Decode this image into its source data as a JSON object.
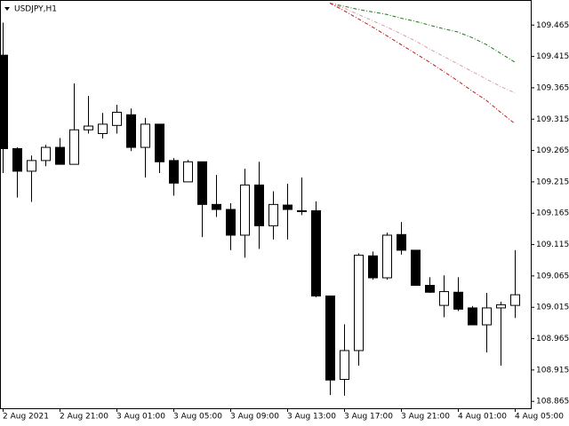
{
  "chart_data": {
    "type": "candlestick",
    "title": "USDJPY,H1",
    "categories": [
      "2 Aug 2021",
      null,
      null,
      null,
      "2 Aug 21:00",
      null,
      null,
      null,
      "3 Aug 01:00",
      null,
      null,
      null,
      "3 Aug 05:00",
      null,
      null,
      null,
      "3 Aug 09:00",
      null,
      null,
      null,
      "3 Aug 13:00",
      null,
      null,
      null,
      "3 Aug 17:00",
      null,
      null,
      null,
      "3 Aug 21:00",
      null,
      null,
      null,
      "4 Aug 01:00",
      null,
      null,
      null,
      "4 Aug 05:00"
    ],
    "open": [
      109.417,
      109.268,
      109.232,
      109.249,
      109.27,
      109.243,
      109.298,
      109.292,
      109.305,
      109.322,
      109.27,
      109.307,
      109.249,
      109.215,
      109.247,
      109.179,
      109.171,
      109.13,
      109.21,
      109.145,
      109.178,
      109.169,
      109.169,
      109.033,
      108.9,
      108.946,
      109.097,
      109.062,
      109.131,
      109.106,
      109.05,
      109.018,
      109.039,
      109.014,
      108.987,
      109.014,
      109.018
    ],
    "high": [
      109.469,
      109.27,
      109.257,
      109.274,
      109.285,
      109.372,
      109.352,
      109.325,
      109.338,
      109.332,
      109.317,
      109.307,
      109.253,
      109.25,
      109.247,
      109.226,
      109.181,
      109.236,
      109.247,
      109.2,
      109.212,
      109.222,
      109.184,
      109.033,
      108.988,
      109.101,
      109.104,
      109.134,
      109.151,
      109.106,
      109.063,
      109.066,
      109.063,
      109.017,
      109.038,
      109.024,
      109.106
    ],
    "low": [
      109.229,
      109.19,
      109.183,
      109.24,
      109.243,
      109.243,
      109.292,
      109.284,
      109.292,
      109.264,
      109.222,
      109.229,
      109.193,
      109.215,
      109.127,
      109.159,
      109.106,
      109.094,
      109.108,
      109.123,
      109.123,
      109.162,
      109.031,
      108.875,
      108.874,
      108.922,
      109.059,
      109.059,
      109.099,
      109.05,
      109.038,
      108.999,
      109.009,
      108.987,
      108.943,
      108.922,
      108.998
    ],
    "close": [
      109.268,
      109.232,
      109.249,
      109.27,
      109.243,
      109.298,
      109.304,
      109.307,
      109.326,
      109.27,
      109.307,
      109.247,
      109.213,
      109.247,
      109.179,
      109.171,
      109.13,
      109.21,
      109.145,
      109.179,
      109.171,
      109.168,
      109.033,
      108.899,
      108.946,
      109.098,
      109.062,
      109.13,
      109.106,
      109.05,
      109.039,
      109.04,
      109.012,
      108.987,
      109.014,
      109.019,
      109.035
    ],
    "up_color": "#ffffff",
    "down_color": "#000000",
    "lines": [
      {
        "color": "#1a7a1a",
        "values": [
          null,
          null,
          null,
          null,
          null,
          null,
          null,
          null,
          null,
          null,
          null,
          null,
          null,
          null,
          null,
          null,
          null,
          null,
          null,
          null,
          null,
          null,
          null,
          109.5,
          109.495,
          109.49,
          109.486,
          109.482,
          109.476,
          109.471,
          109.465,
          109.459,
          109.454,
          109.445,
          109.434,
          109.42,
          109.406
        ]
      },
      {
        "color": "#d4a0a8",
        "values": [
          null,
          null,
          null,
          null,
          null,
          null,
          null,
          null,
          null,
          null,
          null,
          null,
          null,
          null,
          null,
          null,
          null,
          null,
          null,
          null,
          null,
          null,
          null,
          109.5,
          109.492,
          109.482,
          109.472,
          109.462,
          109.451,
          109.44,
          109.427,
          109.415,
          109.403,
          109.391,
          109.379,
          109.367,
          109.357
        ]
      },
      {
        "color": "#c01818",
        "values": [
          null,
          null,
          null,
          null,
          null,
          null,
          null,
          null,
          null,
          null,
          null,
          null,
          null,
          null,
          null,
          null,
          null,
          null,
          null,
          null,
          null,
          null,
          null,
          109.5,
          109.488,
          109.475,
          109.462,
          109.448,
          109.434,
          109.42,
          109.406,
          109.391,
          109.376,
          109.36,
          109.345,
          109.326,
          109.308
        ]
      }
    ],
    "ylim": [
      108.854,
      109.505
    ],
    "yticks": [
      109.465,
      109.415,
      109.365,
      109.315,
      109.265,
      109.215,
      109.165,
      109.115,
      109.065,
      109.015,
      108.965,
      108.915,
      108.865
    ]
  }
}
